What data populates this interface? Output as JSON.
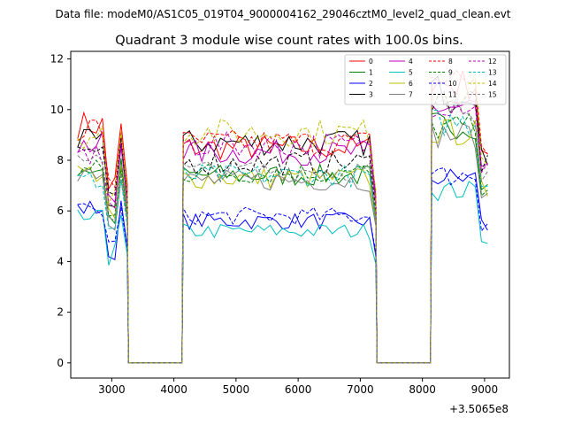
{
  "suptitle": "Data file: modeM0/AS1C05_019T04_9000004162_29046cztM0_level2_quad_clean.evt",
  "chart_data": {
    "type": "line",
    "title": "Quadrant 3 module wise count rates with 100.0s bins.",
    "xlabel": "",
    "ylabel": "",
    "x_offset_label": "+3.5065e8",
    "xlim": [
      2340,
      9400
    ],
    "ylim": [
      -0.6,
      12.3
    ],
    "xticks": [
      3000,
      4000,
      5000,
      6000,
      7000,
      8000,
      9000
    ],
    "yticks": [
      0,
      2,
      4,
      6,
      8,
      10,
      12
    ],
    "segments": [
      [
        2450,
        3250
      ],
      [
        4150,
        7250
      ],
      [
        8150,
        9050
      ]
    ],
    "gaps": [
      [
        3250,
        4150
      ],
      [
        7250,
        8150
      ]
    ],
    "legend_location": "upper right",
    "legend_columns": 4,
    "series": [
      {
        "name": "0",
        "color": "#ff0000",
        "dash": "solid",
        "levels": [
          9.4,
          8.5,
          11.0
        ]
      },
      {
        "name": "1",
        "color": "#008000",
        "dash": "solid",
        "levels": [
          7.7,
          7.4,
          9.4
        ]
      },
      {
        "name": "2",
        "color": "#0000ff",
        "dash": "solid",
        "levels": [
          6.1,
          5.6,
          7.3
        ]
      },
      {
        "name": "3",
        "color": "#000000",
        "dash": "solid",
        "levels": [
          8.7,
          8.7,
          10.8
        ]
      },
      {
        "name": "4",
        "color": "#bf00bf",
        "dash": "solid",
        "levels": [
          8.6,
          8.3,
          10.1
        ]
      },
      {
        "name": "5",
        "color": "#00bfbf",
        "dash": "solid",
        "levels": [
          5.7,
          5.2,
          6.8
        ]
      },
      {
        "name": "6",
        "color": "#bfbf00",
        "dash": "solid",
        "levels": [
          7.5,
          7.3,
          9.1
        ]
      },
      {
        "name": "7",
        "color": "#808080",
        "dash": "solid",
        "levels": [
          7.6,
          7.2,
          9.0
        ]
      },
      {
        "name": "8",
        "color": "#ff0000",
        "dash": "dashed",
        "levels": [
          9.3,
          8.7,
          11.2
        ]
      },
      {
        "name": "9",
        "color": "#008000",
        "dash": "dashed",
        "levels": [
          7.6,
          7.5,
          9.3
        ]
      },
      {
        "name": "10",
        "color": "#0000ff",
        "dash": "dashed",
        "levels": [
          6.0,
          5.8,
          7.4
        ]
      },
      {
        "name": "11",
        "color": "#000000",
        "dash": "dashed",
        "levels": [
          8.4,
          7.9,
          10.4
        ]
      },
      {
        "name": "12",
        "color": "#bf00bf",
        "dash": "dashed",
        "levels": [
          8.2,
          8.6,
          10.3
        ]
      },
      {
        "name": "13",
        "color": "#00bfbf",
        "dash": "dashed",
        "levels": [
          7.2,
          7.4,
          9.5
        ]
      },
      {
        "name": "14",
        "color": "#bfbf00",
        "dash": "dashed",
        "levels": [
          9.0,
          9.1,
          10.8
        ]
      },
      {
        "name": "15",
        "color": "#808080",
        "dash": "dashed",
        "levels": [
          7.8,
          7.6,
          10.0
        ]
      }
    ]
  }
}
